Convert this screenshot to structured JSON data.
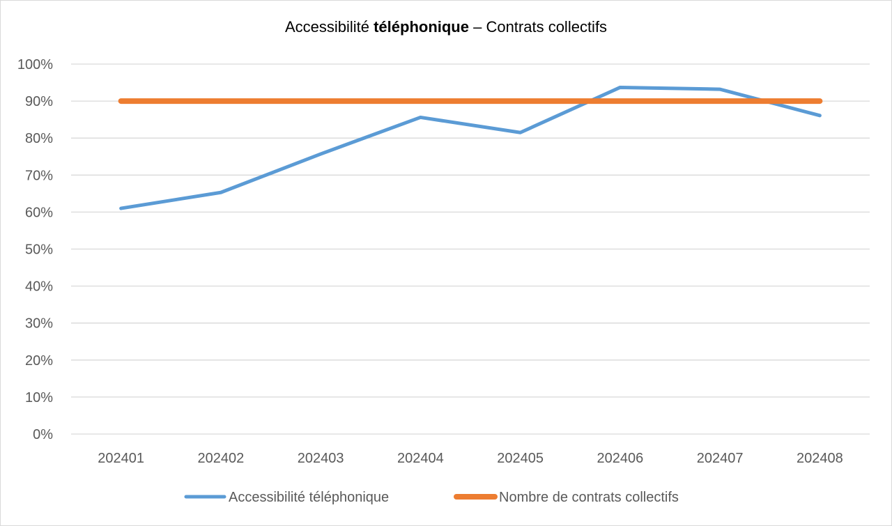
{
  "chart_data": {
    "type": "line",
    "title_parts": {
      "pre": "Accessibilité ",
      "bold": "téléphonique",
      "post": " – Contrats collectifs"
    },
    "categories": [
      "202401",
      "202402",
      "202403",
      "202404",
      "202405",
      "202406",
      "202407",
      "202408"
    ],
    "series": [
      {
        "name": "Accessibilité téléphonique",
        "color": "#5b9bd5",
        "values": [
          0.61,
          0.653,
          0.757,
          0.856,
          0.815,
          0.937,
          0.932,
          0.861
        ]
      },
      {
        "name": "Nombre de contrats collectifs",
        "color": "#ed7d31",
        "values": [
          0.9,
          0.9,
          0.9,
          0.9,
          0.9,
          0.9,
          0.9,
          0.9
        ]
      }
    ],
    "yticks": [
      "0%",
      "10%",
      "20%",
      "30%",
      "40%",
      "50%",
      "60%",
      "70%",
      "80%",
      "90%",
      "100%"
    ],
    "ylim": [
      0,
      1
    ],
    "grid": true,
    "legend": "bottom",
    "gridColor": "#d9d9d9"
  }
}
